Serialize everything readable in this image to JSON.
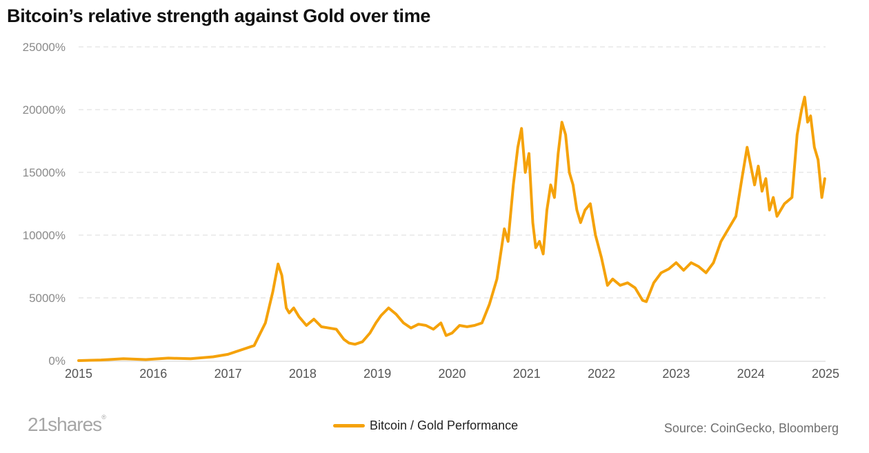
{
  "chart_data": {
    "type": "line",
    "title": "Bitcoin’s relative strength against Gold over time",
    "xlabel": "",
    "ylabel": "",
    "x_ticks": [
      "2015",
      "2016",
      "2017",
      "2018",
      "2019",
      "2020",
      "2021",
      "2022",
      "2023",
      "2024",
      "2025"
    ],
    "y_ticks": [
      "0%",
      "5000%",
      "10000%",
      "15000%",
      "20000%",
      "25000%"
    ],
    "xlim": [
      2015,
      2025
    ],
    "ylim": [
      0,
      25000
    ],
    "grid": "horizontal dashed",
    "legend_position": "bottom-center",
    "series": [
      {
        "name": "Bitcoin / Gold Performance",
        "color": "#f5a20a",
        "x": [
          2015.0,
          2015.3,
          2015.6,
          2015.9,
          2016.2,
          2016.5,
          2016.8,
          2017.0,
          2017.2,
          2017.35,
          2017.5,
          2017.6,
          2017.67,
          2017.72,
          2017.78,
          2017.82,
          2017.88,
          2017.95,
          2018.05,
          2018.15,
          2018.25,
          2018.35,
          2018.45,
          2018.55,
          2018.62,
          2018.7,
          2018.8,
          2018.9,
          2018.98,
          2019.05,
          2019.15,
          2019.25,
          2019.35,
          2019.45,
          2019.55,
          2019.65,
          2019.75,
          2019.85,
          2019.92,
          2020.0,
          2020.1,
          2020.2,
          2020.3,
          2020.4,
          2020.5,
          2020.6,
          2020.7,
          2020.75,
          2020.82,
          2020.88,
          2020.93,
          2020.98,
          2021.03,
          2021.08,
          2021.12,
          2021.17,
          2021.22,
          2021.27,
          2021.32,
          2021.37,
          2021.42,
          2021.47,
          2021.52,
          2021.57,
          2021.62,
          2021.67,
          2021.72,
          2021.78,
          2021.85,
          2021.92,
          2022.0,
          2022.08,
          2022.15,
          2022.25,
          2022.35,
          2022.45,
          2022.55,
          2022.6,
          2022.7,
          2022.8,
          2022.9,
          2023.0,
          2023.1,
          2023.2,
          2023.3,
          2023.4,
          2023.5,
          2023.6,
          2023.7,
          2023.8,
          2023.88,
          2023.95,
          2024.0,
          2024.05,
          2024.1,
          2024.15,
          2024.2,
          2024.25,
          2024.3,
          2024.35,
          2024.45,
          2024.55,
          2024.62,
          2024.68,
          2024.72,
          2024.76,
          2024.8,
          2024.85,
          2024.9,
          2024.95,
          2024.99
        ],
        "y": [
          0,
          50,
          150,
          80,
          200,
          150,
          300,
          500,
          900,
          1200,
          3000,
          5500,
          7700,
          6800,
          4200,
          3800,
          4200,
          3500,
          2800,
          3300,
          2700,
          2600,
          2500,
          1700,
          1400,
          1300,
          1500,
          2200,
          3000,
          3600,
          4200,
          3700,
          3000,
          2600,
          2900,
          2800,
          2500,
          3000,
          2000,
          2200,
          2800,
          2700,
          2800,
          3000,
          4500,
          6500,
          10500,
          9500,
          14000,
          17000,
          18500,
          15000,
          16500,
          11000,
          9000,
          9500,
          8500,
          12000,
          14000,
          13000,
          16500,
          19000,
          18000,
          15000,
          14000,
          12000,
          11000,
          12000,
          12500,
          10000,
          8200,
          6000,
          6500,
          6000,
          6200,
          5800,
          4800,
          4700,
          6200,
          7000,
          7300,
          7800,
          7200,
          7800,
          7500,
          7000,
          7800,
          9500,
          10500,
          11500,
          14500,
          17000,
          15500,
          14000,
          15500,
          13500,
          14500,
          12000,
          13000,
          11500,
          12500,
          13000,
          18000,
          20000,
          21000,
          19000,
          19500,
          17000,
          16000,
          13000,
          14500
        ]
      }
    ],
    "footer": {
      "logo": "21shares",
      "logo_mark": "®",
      "source": "Source: CoinGecko, Bloomberg"
    }
  }
}
